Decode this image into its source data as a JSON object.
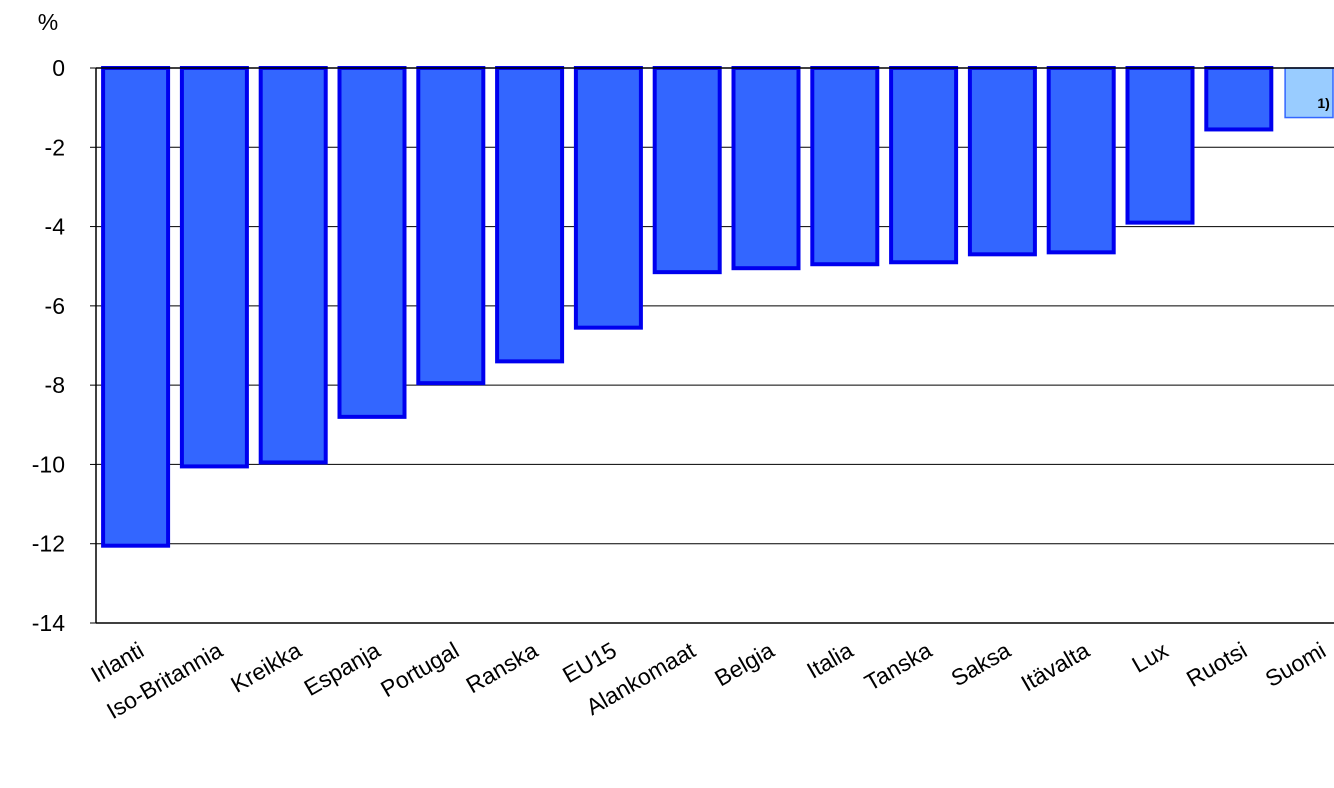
{
  "chart_data": {
    "type": "bar",
    "unit_label": "%",
    "categories": [
      "Irlanti",
      "Iso-Britannia",
      "Kreikka",
      "Espanja",
      "Portugal",
      "Ranska",
      "EU15",
      "Alankomaat",
      "Belgia",
      "Italia",
      "Tanska",
      "Saksa",
      "Itävalta",
      "Lux",
      "Ruotsi",
      "Suomi"
    ],
    "values": [
      -12.05,
      -10.05,
      -9.95,
      -8.8,
      -7.95,
      -7.4,
      -6.55,
      -5.15,
      -5.05,
      -4.95,
      -4.9,
      -4.7,
      -4.65,
      -3.9,
      -1.55,
      -1.25
    ],
    "ylim": [
      -14,
      0
    ],
    "yticks": [
      0,
      -2,
      -4,
      -6,
      -8,
      -10,
      -12,
      -14
    ],
    "grid": true,
    "colors": {
      "bar_fill": "#3366ff",
      "bar_border": "#0000ee",
      "highlight_fill": "#99ccff",
      "highlight_border": "#3366ff"
    },
    "highlight_category": "Suomi",
    "annotation": "1)"
  }
}
